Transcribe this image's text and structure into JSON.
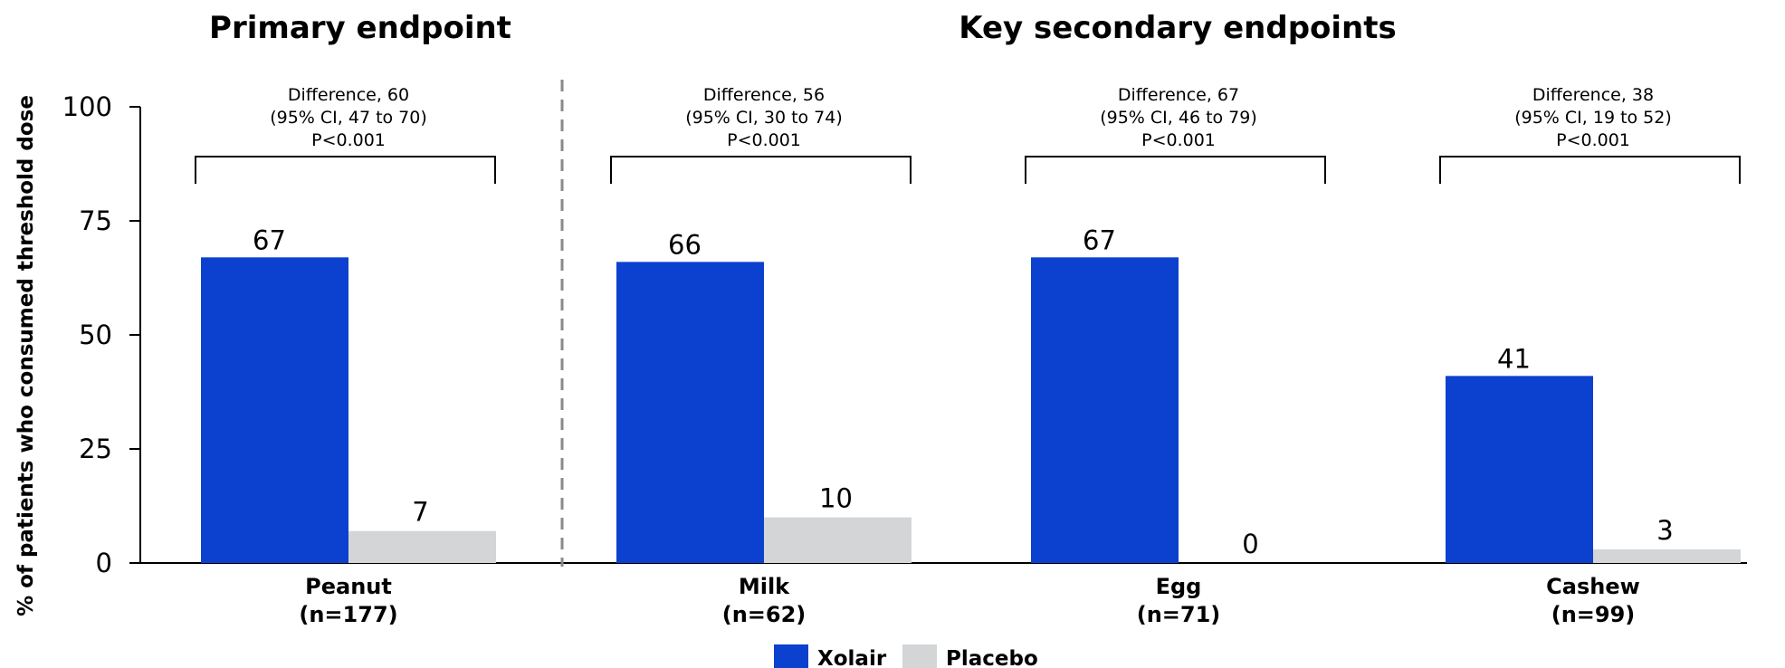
{
  "chart_data": {
    "type": "bar",
    "section_titles": [
      "Primary endpoint",
      "Key secondary endpoints"
    ],
    "ylabel": "% of patients who consumed threshold dose",
    "ylim": [
      0,
      100
    ],
    "yticks": [
      0,
      25,
      50,
      75,
      100
    ],
    "categories": [
      "Peanut",
      "Milk",
      "Egg",
      "Cashew"
    ],
    "category_sublabels": [
      "(n=177)",
      "(n=62)",
      "(n=71)",
      "(n=99)"
    ],
    "series": [
      {
        "name": "Xolair",
        "color": "#0b41ce",
        "values": [
          67,
          66,
          67,
          41
        ]
      },
      {
        "name": "Placebo",
        "color": "#d4d5d7",
        "values": [
          7,
          10,
          0,
          3
        ]
      }
    ],
    "annotations": [
      [
        "Difference, 60",
        "(95% CI, 47 to 70)",
        "P<0.001"
      ],
      [
        "Difference, 56",
        "(95% CI, 30 to 74)",
        "P<0.001"
      ],
      [
        "Difference, 67",
        "(95% CI, 46 to 79)",
        "P<0.001"
      ],
      [
        "Difference, 38",
        "(95% CI, 19 to 52)",
        "P<0.001"
      ]
    ],
    "legend_position": "bottom-center",
    "grid": false
  }
}
